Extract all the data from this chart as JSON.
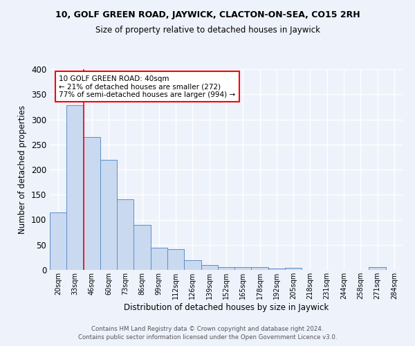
{
  "title": "10, GOLF GREEN ROAD, JAYWICK, CLACTON-ON-SEA, CO15 2RH",
  "subtitle": "Size of property relative to detached houses in Jaywick",
  "xlabel": "Distribution of detached houses by size in Jaywick",
  "ylabel": "Number of detached properties",
  "bar_color": "#c9d9f0",
  "bar_edge_color": "#5b8fc9",
  "categories": [
    "20sqm",
    "33sqm",
    "46sqm",
    "60sqm",
    "73sqm",
    "86sqm",
    "99sqm",
    "112sqm",
    "126sqm",
    "139sqm",
    "152sqm",
    "165sqm",
    "178sqm",
    "192sqm",
    "205sqm",
    "218sqm",
    "231sqm",
    "244sqm",
    "258sqm",
    "271sqm",
    "284sqm"
  ],
  "values": [
    115,
    328,
    265,
    220,
    141,
    90,
    44,
    41,
    20,
    9,
    5,
    6,
    6,
    3,
    4,
    0,
    0,
    0,
    0,
    5,
    0
  ],
  "ylim": [
    0,
    400
  ],
  "yticks": [
    0,
    50,
    100,
    150,
    200,
    250,
    300,
    350,
    400
  ],
  "red_line_x": 1.5,
  "annotation_text": "10 GOLF GREEN ROAD: 40sqm\n← 21% of detached houses are smaller (272)\n77% of semi-detached houses are larger (994) →",
  "annotation_box_color": "white",
  "annotation_box_edge": "red",
  "footer1": "Contains HM Land Registry data © Crown copyright and database right 2024.",
  "footer2": "Contains public sector information licensed under the Open Government Licence v3.0.",
  "background_color": "#eef2fb",
  "grid_color": "white"
}
